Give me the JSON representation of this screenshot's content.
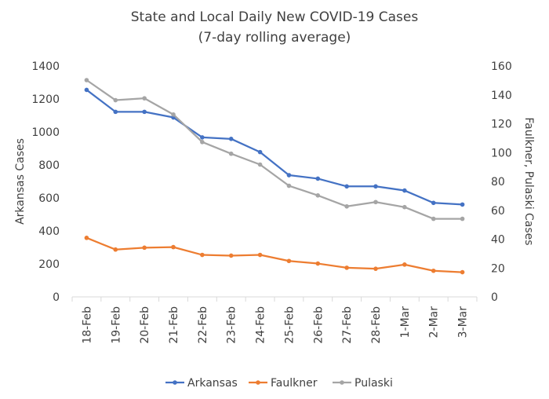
{
  "chart_data": {
    "type": "line",
    "title_line1": "State and Local Daily New COVID-19 Cases",
    "title_line2": "(7-day rolling average)",
    "categories": [
      "18-Feb",
      "19-Feb",
      "20-Feb",
      "21-Feb",
      "22-Feb",
      "23-Feb",
      "24-Feb",
      "25-Feb",
      "26-Feb",
      "27-Feb",
      "28-Feb",
      "1-Mar",
      "2-Mar",
      "3-Mar"
    ],
    "ylabel_left": "Arkansas Cases",
    "ylabel_right": "Faulkner, Pulaski Cases",
    "ylim_left": [
      0,
      1400
    ],
    "ylim_right": [
      0,
      160
    ],
    "yticks_left": [
      "0",
      "200",
      "400",
      "600",
      "800",
      "1000",
      "1200",
      "1400"
    ],
    "yticks_right": [
      "0",
      "20",
      "40",
      "60",
      "80",
      "100",
      "120",
      "140",
      "160"
    ],
    "legend_position": "bottom",
    "grid": false,
    "series": [
      {
        "name": "Arkansas",
        "axis": "left",
        "color": "#4472C4",
        "values": [
          1255,
          1122,
          1122,
          1088,
          967,
          958,
          878,
          738,
          717,
          670,
          670,
          645,
          570,
          560
        ]
      },
      {
        "name": "Faulkner",
        "axis": "right",
        "color": "#ED7D31",
        "values": [
          40.9,
          32.8,
          34.1,
          34.5,
          29.1,
          28.6,
          29.1,
          24.9,
          23.1,
          20.2,
          19.5,
          22.4,
          18.1,
          17.1
        ]
      },
      {
        "name": "Pulaski",
        "axis": "right",
        "color": "#A5A5A5",
        "values": [
          150.2,
          136.3,
          137.6,
          126.4,
          107.3,
          99.2,
          91.7,
          77.0,
          70.3,
          62.7,
          65.7,
          62.2,
          54.1,
          54.1
        ]
      }
    ]
  }
}
